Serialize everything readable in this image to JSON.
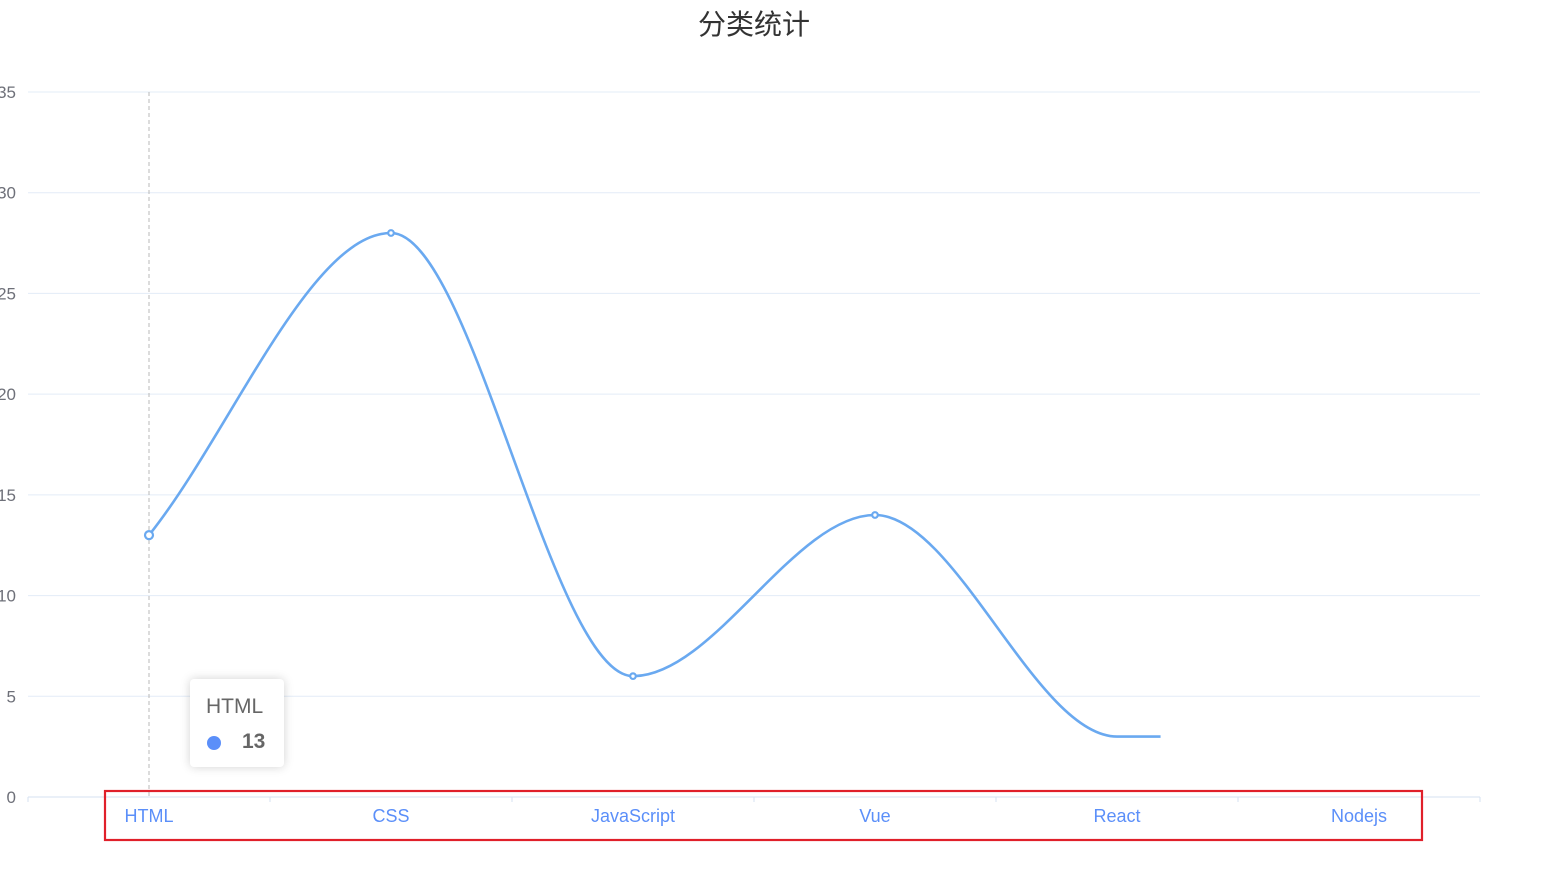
{
  "chart_data": {
    "type": "line",
    "title": "分类统计",
    "categories": [
      "HTML",
      "CSS",
      "JavaScript",
      "Vue",
      "React",
      "Nodejs"
    ],
    "series": [
      {
        "values": [
          13,
          28,
          6,
          14,
          3,
          null
        ]
      }
    ],
    "y_ticks": [
      "35",
      "30",
      "25",
      "20",
      "15",
      "10",
      "5",
      "0"
    ],
    "ylim": [
      0,
      35
    ],
    "smooth": true,
    "grid": true,
    "line_color": "#6aa9f0",
    "label_color": "#5b8ff9",
    "highlight_color": "#e0202a",
    "tooltip": {
      "label": "HTML",
      "value": "13",
      "marker_color": "#5b8ff9"
    }
  }
}
